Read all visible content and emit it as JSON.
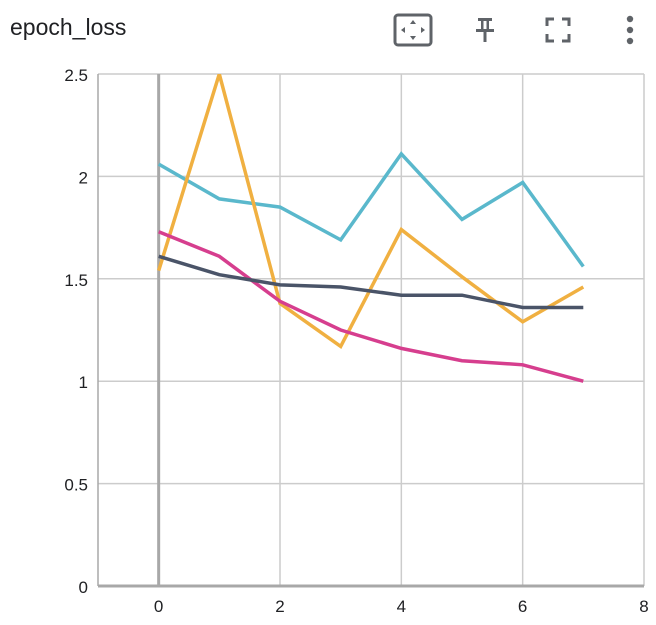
{
  "header": {
    "title": "epoch_loss",
    "icons": [
      "fit-domain-icon",
      "pin-icon",
      "fullscreen-icon",
      "more-options-icon"
    ]
  },
  "chart_data": {
    "type": "line",
    "xlabel": "",
    "ylabel": "",
    "xlim": [
      -1,
      8
    ],
    "ylim": [
      0,
      2.5
    ],
    "x_ticks": [
      "0",
      "2",
      "4",
      "6",
      "8"
    ],
    "y_ticks": [
      "0",
      "0.5",
      "1",
      "1.5",
      "2",
      "2.5"
    ],
    "grid": true,
    "x": [
      0,
      1,
      2,
      3,
      4,
      5,
      6,
      7
    ],
    "series": [
      {
        "color": "#5ab8cc",
        "values": [
          2.06,
          1.89,
          1.85,
          1.69,
          2.11,
          1.79,
          1.97,
          1.56
        ]
      },
      {
        "color": "#f0b041",
        "values": [
          1.54,
          2.5,
          1.38,
          1.17,
          1.74,
          1.51,
          1.29,
          1.46
        ]
      },
      {
        "color": "#d63e8e",
        "values": [
          1.73,
          1.61,
          1.39,
          1.25,
          1.16,
          1.1,
          1.08,
          1.0
        ]
      },
      {
        "color": "#4a5468",
        "values": [
          1.61,
          1.52,
          1.47,
          1.46,
          1.42,
          1.42,
          1.36,
          1.36
        ]
      }
    ]
  }
}
